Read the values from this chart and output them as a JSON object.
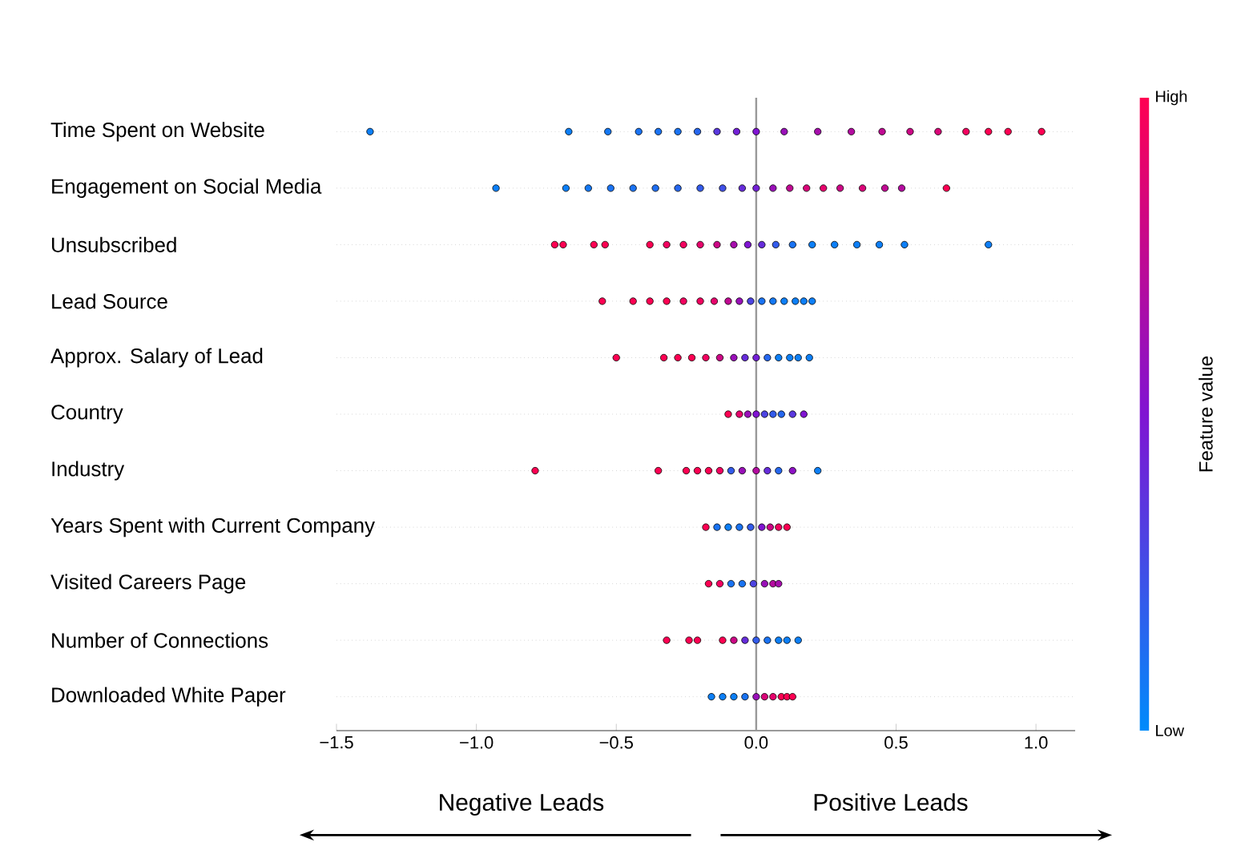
{
  "chart_data": {
    "type": "scatter",
    "orientation": "horizontal",
    "marker": "circle",
    "grid": "y",
    "categories": [
      "Time Spent on Website",
      "Engagement on Social Media",
      "Unsubscribed",
      "Lead Source",
      "Approx. Salary of Lead",
      "Country",
      "Industry",
      "Years Spent with Current Company",
      "Visited Careers Page",
      "Number of Connections",
      "Downloaded White Paper"
    ],
    "xlim": [
      -1.5,
      1.14
    ],
    "xticks": [
      {
        "value": -1.5,
        "label": "−1.5"
      },
      {
        "value": -1.0,
        "label": "−1.0"
      },
      {
        "value": -0.5,
        "label": "−0.5"
      },
      {
        "value": 0.0,
        "label": "0.0"
      },
      {
        "value": 0.5,
        "label": "0.5"
      },
      {
        "value": 1.0,
        "label": "1.0"
      }
    ],
    "clabel": "Feature value",
    "clim": [
      0,
      1
    ],
    "cticks": [
      {
        "value": 0,
        "label": "Low"
      },
      {
        "value": 1,
        "label": "High"
      }
    ],
    "ref_lines": [
      {
        "axis": "x",
        "value": 0,
        "color": "#999999"
      }
    ],
    "annotations": [
      "Negative Leads",
      "Positive Leads"
    ],
    "series": [
      {
        "values": [
          -1.38,
          -0.93,
          -0.72,
          -0.55,
          -0.5,
          -0.1,
          -0.79,
          -0.18,
          -0.17,
          -0.32,
          -0.16
        ],
        "colors": [
          "#0d7ff7",
          "#0d7ff7",
          "#ff0052",
          "#ff0052",
          "#ff0052",
          "#ff0052",
          "#ff0052",
          "#ff0052",
          "#ff0052",
          "#ff0052",
          "#0d7ff7"
        ]
      },
      {
        "values": [
          -0.67,
          -0.68,
          -0.69,
          -0.44,
          -0.33,
          -0.06,
          -0.35,
          -0.14,
          -0.13,
          -0.24,
          -0.12
        ],
        "colors": [
          "#0d7ff7",
          "#0d7ff7",
          "#ff0052",
          "#ff0052",
          "#ff0052",
          "#e6046c",
          "#ff0052",
          "#1a73f3",
          "#f2025f",
          "#ff0052",
          "#0d7ff7"
        ]
      },
      {
        "values": [
          -0.53,
          -0.6,
          -0.58,
          -0.38,
          -0.28,
          -0.03,
          -0.25,
          -0.1,
          -0.09,
          -0.21,
          -0.08
        ],
        "colors": [
          "#1478f4",
          "#1478f4",
          "#ff0052",
          "#ff0052",
          "#ff0052",
          "#9910b8",
          "#ff0052",
          "#0d7ff7",
          "#1a73f3",
          "#ff0052",
          "#0d7ff7"
        ]
      },
      {
        "values": [
          -0.42,
          -0.52,
          -0.54,
          -0.32,
          -0.23,
          0.0,
          -0.21,
          -0.06,
          -0.05,
          -0.12,
          -0.04
        ],
        "colors": [
          "#1a73f3",
          "#1a73f3",
          "#ff0052",
          "#ff0052",
          "#ff0052",
          "#8014d2",
          "#ff0052",
          "#1a73f3",
          "#1a73f3",
          "#ff0052",
          "#1a73f3"
        ]
      },
      {
        "values": [
          -0.35,
          -0.44,
          -0.38,
          -0.26,
          -0.18,
          0.03,
          -0.17,
          -0.02,
          -0.01,
          -0.08,
          0.0
        ],
        "colors": [
          "#1a73f3",
          "#1a73f3",
          "#ff0052",
          "#f2025f",
          "#f2025f",
          "#4d44e2",
          "#ff0052",
          "#335beb",
          "#4d44e2",
          "#cc0885",
          "#9910b8"
        ]
      },
      {
        "values": [
          -0.28,
          -0.36,
          -0.32,
          -0.2,
          -0.13,
          0.06,
          -0.13,
          0.02,
          0.03,
          -0.04,
          0.03
        ],
        "colors": [
          "#1a73f3",
          "#1f6ef1",
          "#f2025f",
          "#f2025f",
          "#cc0885",
          "#335beb",
          "#f2025f",
          "#8014d2",
          "#9910b8",
          "#662cda",
          "#d90678"
        ]
      },
      {
        "values": [
          -0.21,
          -0.28,
          -0.26,
          -0.15,
          -0.08,
          0.09,
          -0.09,
          0.05,
          0.06,
          0.0,
          0.06
        ],
        "colors": [
          "#2667ef",
          "#2667ef",
          "#f2025f",
          "#e6046c",
          "#9910b8",
          "#2667ef",
          "#335beb",
          "#cc0885",
          "#b30c9f",
          "#335beb",
          "#e6046c"
        ]
      },
      {
        "values": [
          -0.14,
          -0.2,
          -0.2,
          -0.1,
          -0.04,
          0.13,
          -0.05,
          0.08,
          0.08,
          0.04,
          0.09
        ],
        "colors": [
          "#5a38de",
          "#335beb",
          "#e6046c",
          "#c00a92",
          "#662cda",
          "#5a38de",
          "#9910b8",
          "#f2025f",
          "#a60eac",
          "#1a73f3",
          "#ff0052"
        ]
      },
      {
        "values": [
          -0.07,
          -0.12,
          -0.14,
          -0.06,
          0.0,
          0.17,
          0.0,
          0.11,
          null,
          0.08,
          0.11
        ],
        "colors": [
          "#7320d6",
          "#4050e7",
          "#cc0885",
          "#9910b8",
          "#7320d6",
          "#8014d2",
          "#b30c9f",
          "#ff0052",
          null,
          "#0d7ff7",
          "#ff0052"
        ]
      },
      {
        "values": [
          0.0,
          -0.05,
          -0.08,
          -0.02,
          0.04,
          null,
          0.04,
          null,
          null,
          0.11,
          0.13
        ],
        "colors": [
          "#8014d2",
          "#662cda",
          "#a60eac",
          "#4d44e2",
          "#2667ef",
          null,
          "#662cda",
          null,
          null,
          "#0d7ff7",
          "#ff0052"
        ]
      },
      {
        "values": [
          0.1,
          0.0,
          -0.03,
          0.02,
          0.08,
          null,
          0.08,
          null,
          null,
          0.15,
          null
        ],
        "colors": [
          "#9910b8",
          "#7320d6",
          "#8014d2",
          "#1a73f3",
          "#0d7ff7",
          null,
          "#2667ef",
          null,
          null,
          "#0d7ff7",
          null
        ]
      },
      {
        "values": [
          0.22,
          0.06,
          0.02,
          0.06,
          0.12,
          null,
          0.13,
          null,
          null,
          null,
          null
        ],
        "colors": [
          "#a60eac",
          "#9910b8",
          "#662cda",
          "#1478f4",
          "#0d7ff7",
          null,
          "#8d12c5",
          null,
          null,
          null,
          null
        ]
      },
      {
        "values": [
          0.34,
          0.12,
          0.07,
          0.1,
          0.15,
          null,
          0.22,
          null,
          null,
          null,
          null
        ],
        "colors": [
          "#b30c9f",
          "#c00a92",
          "#335beb",
          "#0d7ff7",
          "#0d7ff7",
          null,
          "#0d7ff7",
          null,
          null,
          null,
          null
        ]
      },
      {
        "values": [
          0.45,
          0.18,
          0.13,
          0.14,
          0.19,
          null,
          null,
          null,
          null,
          null,
          null
        ],
        "colors": [
          "#c00a92",
          "#d90678",
          "#1a73f3",
          "#0d7ff7",
          "#0d7ff7",
          null,
          null,
          null,
          null,
          null,
          null
        ]
      },
      {
        "values": [
          0.55,
          0.24,
          0.2,
          0.17,
          null,
          null,
          null,
          null,
          null,
          null,
          null
        ],
        "colors": [
          "#cc0885",
          "#e6046c",
          "#0d7ff7",
          "#0d7ff7",
          null,
          null,
          null,
          null,
          null,
          null,
          null
        ]
      },
      {
        "values": [
          0.65,
          0.3,
          0.28,
          0.2,
          null,
          null,
          null,
          null,
          null,
          null,
          null
        ],
        "colors": [
          "#d90678",
          "#cc0885",
          "#0d7ff7",
          "#0d7ff7",
          null,
          null,
          null,
          null,
          null,
          null,
          null
        ]
      },
      {
        "values": [
          0.75,
          0.38,
          0.36,
          null,
          null,
          null,
          null,
          null,
          null,
          null,
          null
        ],
        "colors": [
          "#f2025f",
          "#d90678",
          "#0d7ff7",
          null,
          null,
          null,
          null,
          null,
          null,
          null,
          null
        ]
      },
      {
        "values": [
          0.83,
          0.46,
          0.44,
          null,
          null,
          null,
          null,
          null,
          null,
          null,
          null
        ],
        "colors": [
          "#ff0052",
          "#c00a92",
          "#0d7ff7",
          null,
          null,
          null,
          null,
          null,
          null,
          null,
          null
        ]
      },
      {
        "values": [
          0.9,
          0.52,
          0.53,
          null,
          null,
          null,
          null,
          null,
          null,
          null,
          null
        ],
        "colors": [
          "#ff0052",
          "#b30c9f",
          "#0d7ff7",
          null,
          null,
          null,
          null,
          null,
          null,
          null,
          null
        ]
      },
      {
        "values": [
          1.02,
          0.68,
          0.83,
          null,
          null,
          null,
          null,
          null,
          null,
          null,
          null
        ],
        "colors": [
          "#ff0052",
          "#ff0052",
          "#0d7ff7",
          null,
          null,
          null,
          null,
          null,
          null,
          null,
          null
        ]
      }
    ]
  }
}
